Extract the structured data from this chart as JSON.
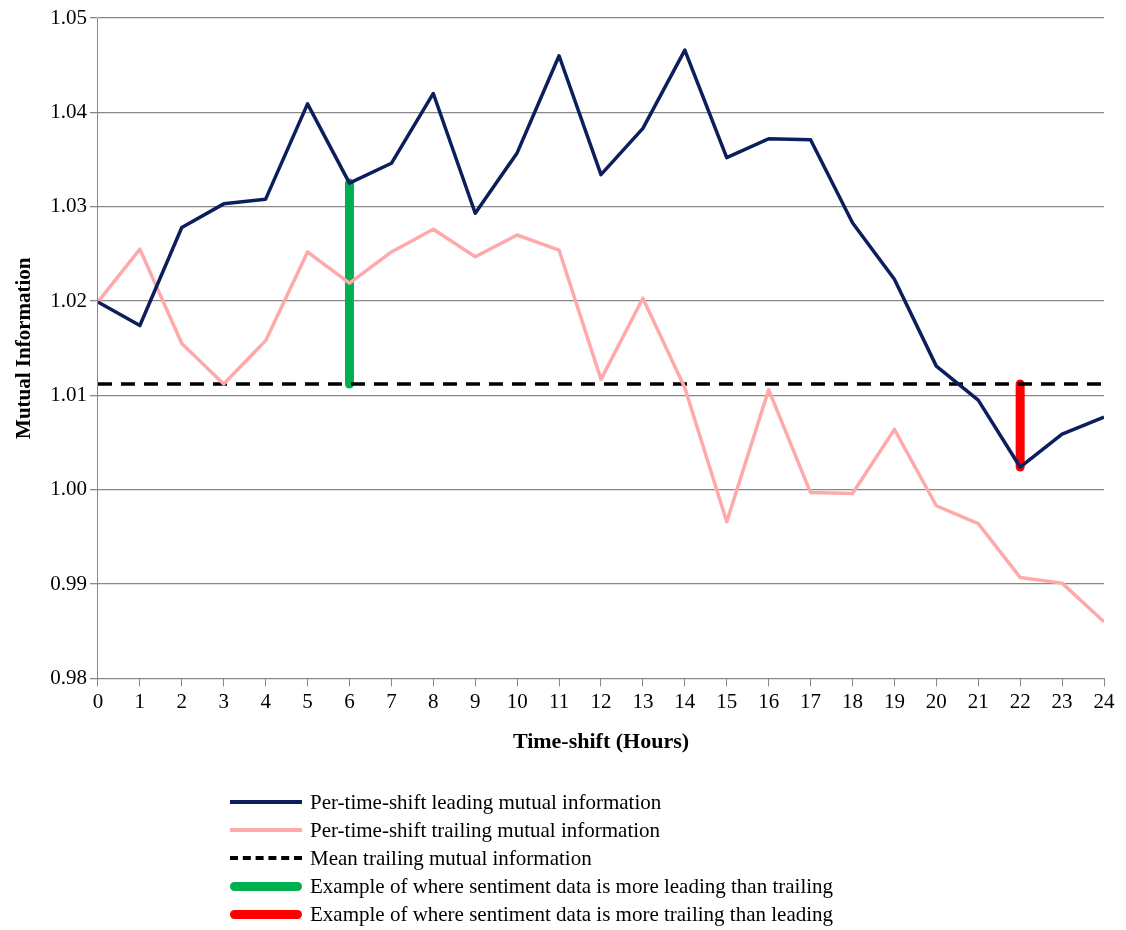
{
  "chart_data": {
    "type": "line",
    "xlabel": "Time-shift (Hours)",
    "ylabel": "Mutual Information",
    "x": [
      0,
      1,
      2,
      3,
      4,
      5,
      6,
      7,
      8,
      9,
      10,
      11,
      12,
      13,
      14,
      15,
      16,
      17,
      18,
      19,
      20,
      21,
      22,
      23,
      24
    ],
    "xlim": [
      0,
      24
    ],
    "xticks": [
      0,
      1,
      2,
      3,
      4,
      5,
      6,
      7,
      8,
      9,
      10,
      11,
      12,
      13,
      14,
      15,
      16,
      17,
      18,
      19,
      20,
      21,
      22,
      23,
      24
    ],
    "ylim": [
      0.98,
      1.05
    ],
    "yticks": [
      {
        "value": 0.98,
        "label": "0.98"
      },
      {
        "value": 0.99,
        "label": "0.99"
      },
      {
        "value": 1.0,
        "label": "1.00"
      },
      {
        "value": 1.01,
        "label": "1.01"
      },
      {
        "value": 1.02,
        "label": "1.02"
      },
      {
        "value": 1.03,
        "label": "1.03"
      },
      {
        "value": 1.04,
        "label": "1.04"
      },
      {
        "value": 1.05,
        "label": "1.05"
      }
    ],
    "grid": "y",
    "legend": "bottom",
    "marker": "none",
    "series": [
      {
        "name": "Per-time-shift leading mutual information",
        "color": "#0c1f5c",
        "values": [
          1.0199,
          1.0174,
          1.0278,
          1.0303,
          1.0308,
          1.0409,
          1.0325,
          1.0346,
          1.042,
          1.0293,
          1.0357,
          1.046,
          1.0334,
          1.0383,
          1.0466,
          1.0352,
          1.0372,
          1.0371,
          1.0283,
          1.0223,
          1.0131,
          1.0095,
          1.0024,
          1.0059,
          1.0077
        ]
      },
      {
        "name": "Per-time-shift trailing mutual information",
        "color": "#ffaaaa",
        "values": [
          1.0199,
          1.0255,
          1.0155,
          1.0112,
          1.0158,
          1.0252,
          1.0219,
          1.0252,
          1.0276,
          1.0247,
          1.027,
          1.0254,
          1.0117,
          1.0203,
          1.0108,
          0.9966,
          1.0106,
          0.9997,
          0.9996,
          1.0064,
          0.9983,
          0.9964,
          0.9907,
          0.9901,
          0.986
        ]
      },
      {
        "name": "Mean trailing mutual information",
        "color": "#000000",
        "line_style": "dashed",
        "x": [
          0,
          24
        ],
        "values": [
          1.0112,
          1.0112
        ]
      },
      {
        "name": "Example of where sentiment data is more leading than trailing",
        "color": "#00b050",
        "x": [
          6,
          6
        ],
        "values": [
          1.0112,
          1.0325
        ]
      },
      {
        "name": "Example of where sentiment data is more trailing than leading",
        "color": "#ff0000",
        "x": [
          22,
          22
        ],
        "values": [
          1.0024,
          1.0112
        ]
      }
    ]
  }
}
